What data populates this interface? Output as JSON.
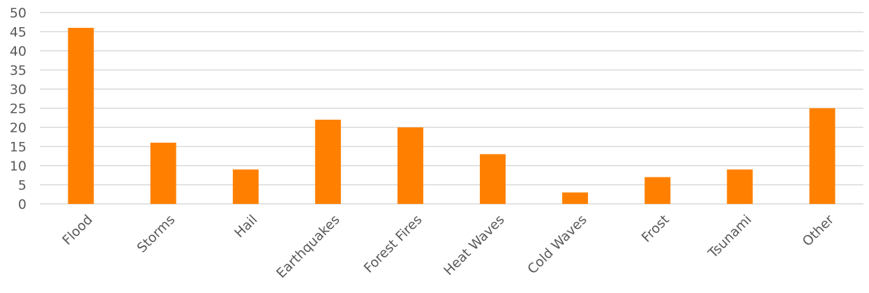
{
  "chart_data": {
    "type": "bar",
    "title": "",
    "xlabel": "",
    "ylabel": "",
    "categories": [
      "Flood",
      "Storms",
      "Hail",
      "Earthquakes",
      "Forest Fires",
      "Heat Waves",
      "Cold Waves",
      "Frost",
      "Tsunami",
      "Other"
    ],
    "values": [
      46,
      16,
      9,
      22,
      20,
      13,
      3,
      7,
      9,
      25
    ],
    "ylim": [
      0,
      50
    ],
    "yticks": [
      0,
      5,
      10,
      15,
      20,
      25,
      30,
      35,
      40,
      45,
      50
    ],
    "grid": true,
    "legend": "none",
    "colors": {
      "bar": "#ff8000",
      "grid": "#d9d9d9",
      "text": "#595959"
    }
  }
}
